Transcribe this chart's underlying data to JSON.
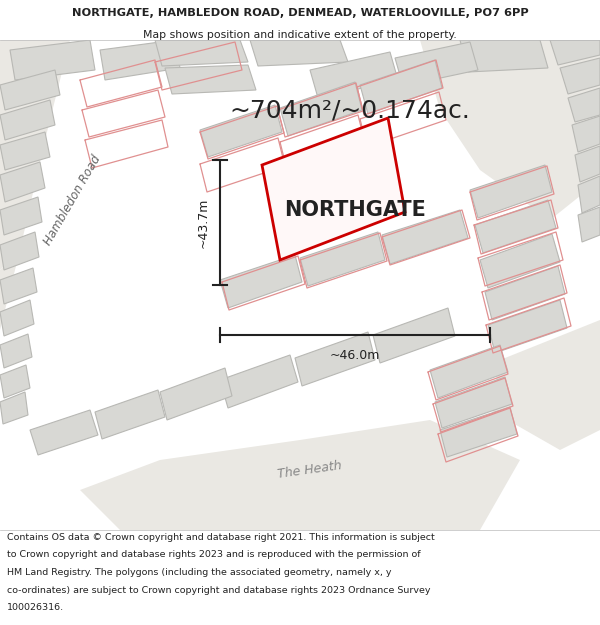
{
  "title_line1": "NORTHGATE, HAMBLEDON ROAD, DENMEAD, WATERLOOVILLE, PO7 6PP",
  "title_line2": "Map shows position and indicative extent of the property.",
  "area_label": "~704m²/~0.174ac.",
  "property_name": "NORTHGATE",
  "dim_vertical": "~43.7m",
  "dim_horizontal": "~46.0m",
  "road_label1": "Hambledon Road",
  "road_label2": "The Heath",
  "footer_lines": [
    "Contains OS data © Crown copyright and database right 2021. This information is subject",
    "to Crown copyright and database rights 2023 and is reproduced with the permission of",
    "HM Land Registry. The polygons (including the associated geometry, namely x, y",
    "co-ordinates) are subject to Crown copyright and database rights 2023 Ordnance Survey",
    "100026316."
  ],
  "white": "#ffffff",
  "red_color": "#cc0000",
  "building_fill": "#d8d8d4",
  "building_edge": "#b8b8b4",
  "road_fill": "#eae8e3",
  "pink_line": "#e09090",
  "map_bg": "#f0ede8",
  "dark": "#222222",
  "mid_gray": "#888888"
}
